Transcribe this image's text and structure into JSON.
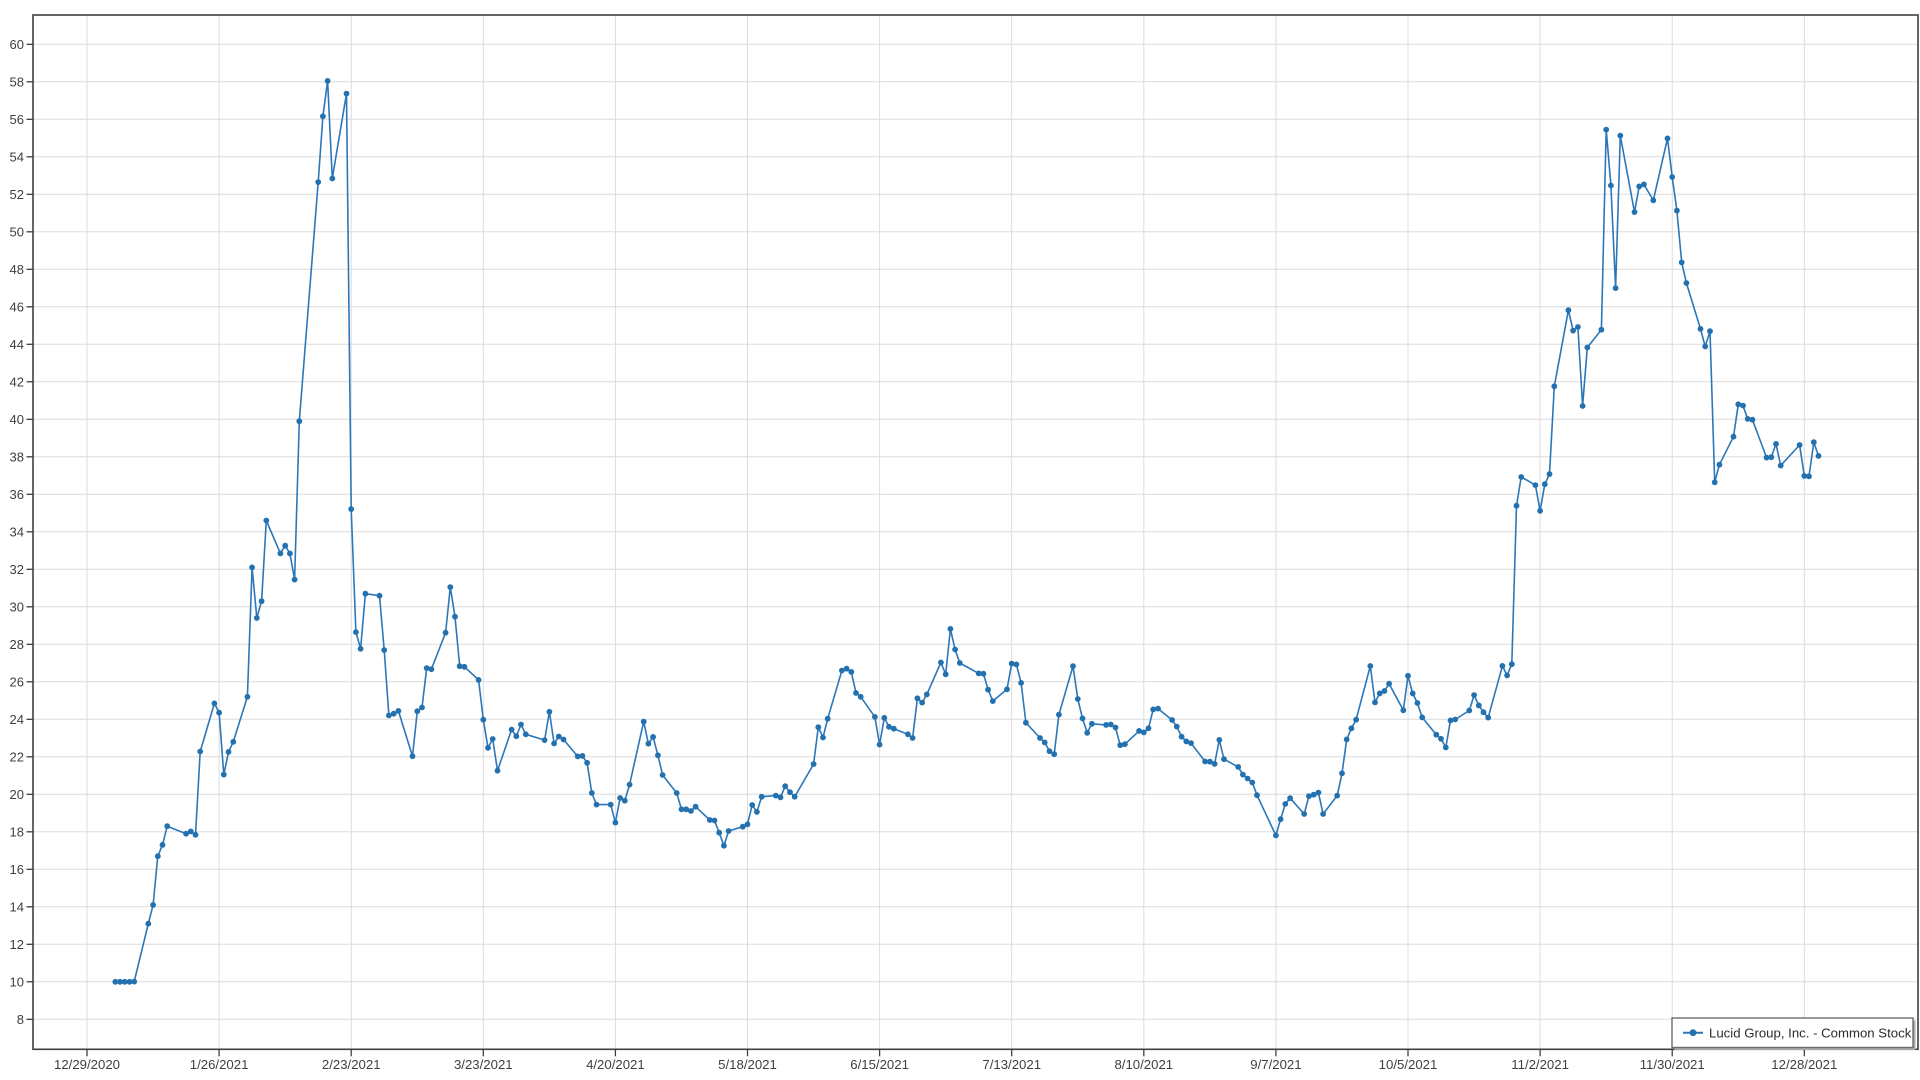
{
  "chart_data": {
    "type": "line",
    "title": "",
    "xlabel": "",
    "ylabel": "",
    "grid": true,
    "legend_position": "bottom-right",
    "colors": {
      "line": "#2b77b9",
      "marker": "#2471af",
      "grid": "#dcdcdc",
      "frame": "#3f3f3f",
      "tick_text": "#404040",
      "legend_border": "#6b6b6b",
      "legend_shadow": "#ababab",
      "legend_text": "#2b2b2b",
      "background": "#ffffff"
    },
    "x_axis": {
      "start_date": "2020-12-29",
      "tick_interval_days": 28,
      "tick_labels": [
        "12/29/2020",
        "1/26/2021",
        "2/23/2021",
        "3/23/2021",
        "4/20/2021",
        "5/18/2021",
        "6/15/2021",
        "7/13/2021",
        "8/10/2021",
        "9/7/2021",
        "10/5/2021",
        "11/2/2021",
        "11/30/2021",
        "12/28/2021"
      ]
    },
    "y_axis": {
      "min": 8,
      "max": 60,
      "step": 2
    },
    "ylim": [
      6.4,
      61.6
    ],
    "legend": {
      "label": "Lucid Group, Inc. - Common Stock"
    },
    "series": [
      {
        "name": "Lucid Group, Inc. - Common Stock",
        "points": [
          [
            "2021-01-04",
            10.0
          ],
          [
            "2021-01-05",
            10.0
          ],
          [
            "2021-01-06",
            10.0
          ],
          [
            "2021-01-07",
            10.0
          ],
          [
            "2021-01-08",
            10.01
          ],
          [
            "2021-01-11",
            13.1
          ],
          [
            "2021-01-12",
            14.1
          ],
          [
            "2021-01-13",
            16.7
          ],
          [
            "2021-01-14",
            17.3
          ],
          [
            "2021-01-15",
            18.3
          ],
          [
            "2021-01-19",
            17.9
          ],
          [
            "2021-01-20",
            18.02
          ],
          [
            "2021-01-21",
            17.84
          ],
          [
            "2021-01-22",
            22.28
          ],
          [
            "2021-01-25",
            24.85
          ],
          [
            "2021-01-26",
            24.35
          ],
          [
            "2021-01-27",
            21.05
          ],
          [
            "2021-01-28",
            22.26
          ],
          [
            "2021-01-29",
            22.8
          ],
          [
            "2021-02-01",
            25.2
          ],
          [
            "2021-02-02",
            32.1
          ],
          [
            "2021-02-03",
            29.4
          ],
          [
            "2021-02-04",
            30.3
          ],
          [
            "2021-02-05",
            34.6
          ],
          [
            "2021-02-08",
            32.85
          ],
          [
            "2021-02-09",
            33.26
          ],
          [
            "2021-02-10",
            32.84
          ],
          [
            "2021-02-11",
            31.45
          ],
          [
            "2021-02-12",
            39.9
          ],
          [
            "2021-02-16",
            52.65
          ],
          [
            "2021-02-17",
            56.16
          ],
          [
            "2021-02-18",
            58.05
          ],
          [
            "2021-02-19",
            52.84
          ],
          [
            "2021-02-22",
            57.37
          ],
          [
            "2021-02-23",
            35.21
          ],
          [
            "2021-02-24",
            28.65
          ],
          [
            "2021-02-25",
            27.76
          ],
          [
            "2021-02-26",
            30.7
          ],
          [
            "2021-03-01",
            30.59
          ],
          [
            "2021-03-02",
            27.69
          ],
          [
            "2021-03-03",
            24.21
          ],
          [
            "2021-03-04",
            24.3
          ],
          [
            "2021-03-05",
            24.45
          ],
          [
            "2021-03-08",
            22.03
          ],
          [
            "2021-03-09",
            24.43
          ],
          [
            "2021-03-10",
            24.63
          ],
          [
            "2021-03-11",
            26.73
          ],
          [
            "2021-03-12",
            26.67
          ],
          [
            "2021-03-15",
            28.62
          ],
          [
            "2021-03-16",
            31.05
          ],
          [
            "2021-03-17",
            29.47
          ],
          [
            "2021-03-18",
            26.83
          ],
          [
            "2021-03-19",
            26.8
          ],
          [
            "2021-03-22",
            26.1
          ],
          [
            "2021-03-23",
            23.98
          ],
          [
            "2021-03-24",
            22.48
          ],
          [
            "2021-03-25",
            22.95
          ],
          [
            "2021-03-26",
            21.26
          ],
          [
            "2021-03-29",
            23.45
          ],
          [
            "2021-03-30",
            23.1
          ],
          [
            "2021-03-31",
            23.72
          ],
          [
            "2021-04-01",
            23.2
          ],
          [
            "2021-04-05",
            22.89
          ],
          [
            "2021-04-06",
            24.4
          ],
          [
            "2021-04-07",
            22.71
          ],
          [
            "2021-04-08",
            23.08
          ],
          [
            "2021-04-09",
            22.92
          ],
          [
            "2021-04-12",
            22.02
          ],
          [
            "2021-04-13",
            22.05
          ],
          [
            "2021-04-14",
            21.68
          ],
          [
            "2021-04-15",
            20.07
          ],
          [
            "2021-04-16",
            19.45
          ],
          [
            "2021-04-19",
            19.45
          ],
          [
            "2021-04-20",
            18.49
          ],
          [
            "2021-04-21",
            19.8
          ],
          [
            "2021-04-22",
            19.66
          ],
          [
            "2021-04-23",
            20.52
          ],
          [
            "2021-04-26",
            23.88
          ],
          [
            "2021-04-27",
            22.7
          ],
          [
            "2021-04-28",
            23.06
          ],
          [
            "2021-04-29",
            22.08
          ],
          [
            "2021-04-30",
            21.03
          ],
          [
            "2021-05-03",
            20.07
          ],
          [
            "2021-05-04",
            19.2
          ],
          [
            "2021-05-05",
            19.2
          ],
          [
            "2021-05-06",
            19.11
          ],
          [
            "2021-05-07",
            19.34
          ],
          [
            "2021-05-10",
            18.63
          ],
          [
            "2021-05-11",
            18.6
          ],
          [
            "2021-05-12",
            17.95
          ],
          [
            "2021-05-13",
            17.26
          ],
          [
            "2021-05-14",
            18.04
          ],
          [
            "2021-05-17",
            18.27
          ],
          [
            "2021-05-18",
            18.4
          ],
          [
            "2021-05-19",
            19.43
          ],
          [
            "2021-05-20",
            19.06
          ],
          [
            "2021-05-21",
            19.87
          ],
          [
            "2021-05-24",
            19.93
          ],
          [
            "2021-05-25",
            19.84
          ],
          [
            "2021-05-26",
            20.43
          ],
          [
            "2021-05-27",
            20.11
          ],
          [
            "2021-05-28",
            19.87
          ],
          [
            "2021-06-01",
            21.61
          ],
          [
            "2021-06-02",
            23.58
          ],
          [
            "2021-06-03",
            23.03
          ],
          [
            "2021-06-04",
            24.03
          ],
          [
            "2021-06-07",
            26.6
          ],
          [
            "2021-06-08",
            26.7
          ],
          [
            "2021-06-09",
            26.53
          ],
          [
            "2021-06-10",
            25.4
          ],
          [
            "2021-06-11",
            25.2
          ],
          [
            "2021-06-14",
            24.13
          ],
          [
            "2021-06-15",
            22.65
          ],
          [
            "2021-06-16",
            24.08
          ],
          [
            "2021-06-17",
            23.6
          ],
          [
            "2021-06-18",
            23.5
          ],
          [
            "2021-06-21",
            23.2
          ],
          [
            "2021-06-22",
            23.0
          ],
          [
            "2021-06-23",
            25.12
          ],
          [
            "2021-06-24",
            24.89
          ],
          [
            "2021-06-25",
            25.33
          ],
          [
            "2021-06-28",
            27.03
          ],
          [
            "2021-06-29",
            26.4
          ],
          [
            "2021-06-30",
            28.82
          ],
          [
            "2021-07-01",
            27.72
          ],
          [
            "2021-07-02",
            27.0
          ],
          [
            "2021-07-06",
            26.45
          ],
          [
            "2021-07-07",
            26.43
          ],
          [
            "2021-07-08",
            25.58
          ],
          [
            "2021-07-09",
            24.97
          ],
          [
            "2021-07-12",
            25.6
          ],
          [
            "2021-07-13",
            26.97
          ],
          [
            "2021-07-14",
            26.93
          ],
          [
            "2021-07-15",
            25.94
          ],
          [
            "2021-07-16",
            23.82
          ],
          [
            "2021-07-19",
            23.0
          ],
          [
            "2021-07-20",
            22.77
          ],
          [
            "2021-07-21",
            22.3
          ],
          [
            "2021-07-22",
            22.14
          ],
          [
            "2021-07-23",
            24.25
          ],
          [
            "2021-07-26",
            26.83
          ],
          [
            "2021-07-27",
            25.08
          ],
          [
            "2021-07-28",
            24.05
          ],
          [
            "2021-07-29",
            23.28
          ],
          [
            "2021-07-30",
            23.76
          ],
          [
            "2021-08-02",
            23.7
          ],
          [
            "2021-08-03",
            23.72
          ],
          [
            "2021-08-04",
            23.56
          ],
          [
            "2021-08-05",
            22.62
          ],
          [
            "2021-08-06",
            22.67
          ],
          [
            "2021-08-09",
            23.38
          ],
          [
            "2021-08-10",
            23.3
          ],
          [
            "2021-08-11",
            23.52
          ],
          [
            "2021-08-12",
            24.53
          ],
          [
            "2021-08-13",
            24.57
          ],
          [
            "2021-08-16",
            23.96
          ],
          [
            "2021-08-17",
            23.61
          ],
          [
            "2021-08-18",
            23.07
          ],
          [
            "2021-08-19",
            22.82
          ],
          [
            "2021-08-20",
            22.73
          ],
          [
            "2021-08-23",
            21.75
          ],
          [
            "2021-08-24",
            21.74
          ],
          [
            "2021-08-25",
            21.62
          ],
          [
            "2021-08-26",
            22.9
          ],
          [
            "2021-08-27",
            21.87
          ],
          [
            "2021-08-30",
            21.46
          ],
          [
            "2021-08-31",
            21.05
          ],
          [
            "2021-09-01",
            20.84
          ],
          [
            "2021-09-02",
            20.63
          ],
          [
            "2021-09-03",
            19.95
          ],
          [
            "2021-09-07",
            17.81
          ],
          [
            "2021-09-08",
            18.67
          ],
          [
            "2021-09-09",
            19.48
          ],
          [
            "2021-09-10",
            19.79
          ],
          [
            "2021-09-13",
            18.95
          ],
          [
            "2021-09-14",
            19.9
          ],
          [
            "2021-09-15",
            19.98
          ],
          [
            "2021-09-16",
            20.09
          ],
          [
            "2021-09-17",
            18.95
          ],
          [
            "2021-09-20",
            19.93
          ],
          [
            "2021-09-21",
            21.12
          ],
          [
            "2021-09-22",
            22.93
          ],
          [
            "2021-09-23",
            23.52
          ],
          [
            "2021-09-24",
            23.98
          ],
          [
            "2021-09-27",
            26.84
          ],
          [
            "2021-09-28",
            24.9
          ],
          [
            "2021-09-29",
            25.38
          ],
          [
            "2021-09-30",
            25.51
          ],
          [
            "2021-10-01",
            25.9
          ],
          [
            "2021-10-04",
            24.48
          ],
          [
            "2021-10-05",
            26.32
          ],
          [
            "2021-10-06",
            25.38
          ],
          [
            "2021-10-07",
            24.87
          ],
          [
            "2021-10-08",
            24.1
          ],
          [
            "2021-10-11",
            23.18
          ],
          [
            "2021-10-12",
            22.96
          ],
          [
            "2021-10-13",
            22.5
          ],
          [
            "2021-10-14",
            23.94
          ],
          [
            "2021-10-15",
            23.99
          ],
          [
            "2021-10-18",
            24.47
          ],
          [
            "2021-10-19",
            25.29
          ],
          [
            "2021-10-20",
            24.74
          ],
          [
            "2021-10-21",
            24.38
          ],
          [
            "2021-10-22",
            24.09
          ],
          [
            "2021-10-25",
            26.85
          ],
          [
            "2021-10-26",
            26.34
          ],
          [
            "2021-10-27",
            26.94
          ],
          [
            "2021-10-28",
            35.39
          ],
          [
            "2021-10-29",
            36.92
          ],
          [
            "2021-11-01",
            36.49
          ],
          [
            "2021-11-02",
            35.12
          ],
          [
            "2021-11-03",
            36.54
          ],
          [
            "2021-11-04",
            37.08
          ],
          [
            "2021-11-05",
            41.76
          ],
          [
            "2021-11-08",
            45.82
          ],
          [
            "2021-11-09",
            44.73
          ],
          [
            "2021-11-10",
            44.92
          ],
          [
            "2021-11-11",
            40.71
          ],
          [
            "2021-11-12",
            43.83
          ],
          [
            "2021-11-15",
            44.78
          ],
          [
            "2021-11-16",
            55.45
          ],
          [
            "2021-11-17",
            52.47
          ],
          [
            "2021-11-18",
            47.0
          ],
          [
            "2021-11-19",
            55.13
          ],
          [
            "2021-11-22",
            51.05
          ],
          [
            "2021-11-23",
            52.42
          ],
          [
            "2021-11-24",
            52.53
          ],
          [
            "2021-11-26",
            51.68
          ],
          [
            "2021-11-29",
            54.98
          ],
          [
            "2021-11-30",
            52.92
          ],
          [
            "2021-12-01",
            51.13
          ],
          [
            "2021-12-02",
            48.37
          ],
          [
            "2021-12-03",
            47.27
          ],
          [
            "2021-12-06",
            44.82
          ],
          [
            "2021-12-07",
            43.89
          ],
          [
            "2021-12-08",
            44.7
          ],
          [
            "2021-12-09",
            36.64
          ],
          [
            "2021-12-10",
            37.58
          ],
          [
            "2021-12-13",
            39.07
          ],
          [
            "2021-12-14",
            40.8
          ],
          [
            "2021-12-15",
            40.73
          ],
          [
            "2021-12-16",
            40.02
          ],
          [
            "2021-12-17",
            39.98
          ],
          [
            "2021-12-20",
            37.96
          ],
          [
            "2021-12-21",
            37.98
          ],
          [
            "2021-12-22",
            38.69
          ],
          [
            "2021-12-23",
            37.53
          ],
          [
            "2021-12-27",
            38.63
          ],
          [
            "2021-12-28",
            36.98
          ],
          [
            "2021-12-29",
            36.96
          ],
          [
            "2021-12-30",
            38.78
          ],
          [
            "2021-12-31",
            38.05
          ]
        ]
      }
    ]
  }
}
